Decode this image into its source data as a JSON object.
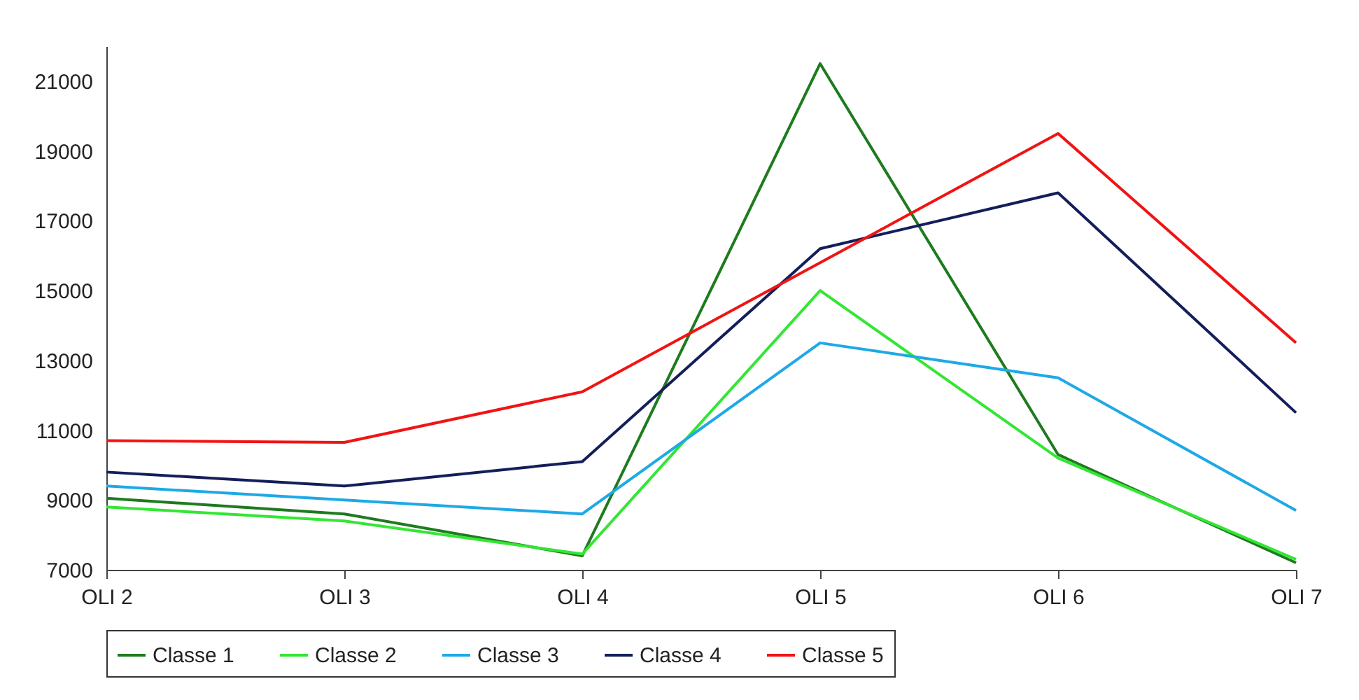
{
  "chart_data": {
    "type": "line",
    "categories": [
      "OLI 2",
      "OLI 3",
      "OLI 4",
      "OLI 5",
      "OLI 6",
      "OLI 7"
    ],
    "series": [
      {
        "name": "Classe 1",
        "color": "#1e7b1e",
        "values": [
          9050,
          8600,
          7400,
          21500,
          10300,
          7200
        ]
      },
      {
        "name": "Classe 2",
        "color": "#33e633",
        "values": [
          8800,
          8400,
          7450,
          15000,
          10200,
          7300
        ]
      },
      {
        "name": "Classe 3",
        "color": "#1ea9e6",
        "values": [
          9400,
          9000,
          8600,
          13500,
          12500,
          8700
        ]
      },
      {
        "name": "Classe 4",
        "color": "#141e5a",
        "values": [
          9800,
          9400,
          10100,
          16200,
          17800,
          11500
        ]
      },
      {
        "name": "Classe 5",
        "color": "#f01414",
        "values": [
          10700,
          10650,
          12100,
          15800,
          19500,
          13500
        ]
      }
    ],
    "ylim": [
      7000,
      22000
    ],
    "yticks": [
      7000,
      9000,
      11000,
      13000,
      15000,
      17000,
      19000,
      21000
    ],
    "grid": false,
    "legend": "bottom",
    "marker": "none",
    "line_style": "solid"
  }
}
